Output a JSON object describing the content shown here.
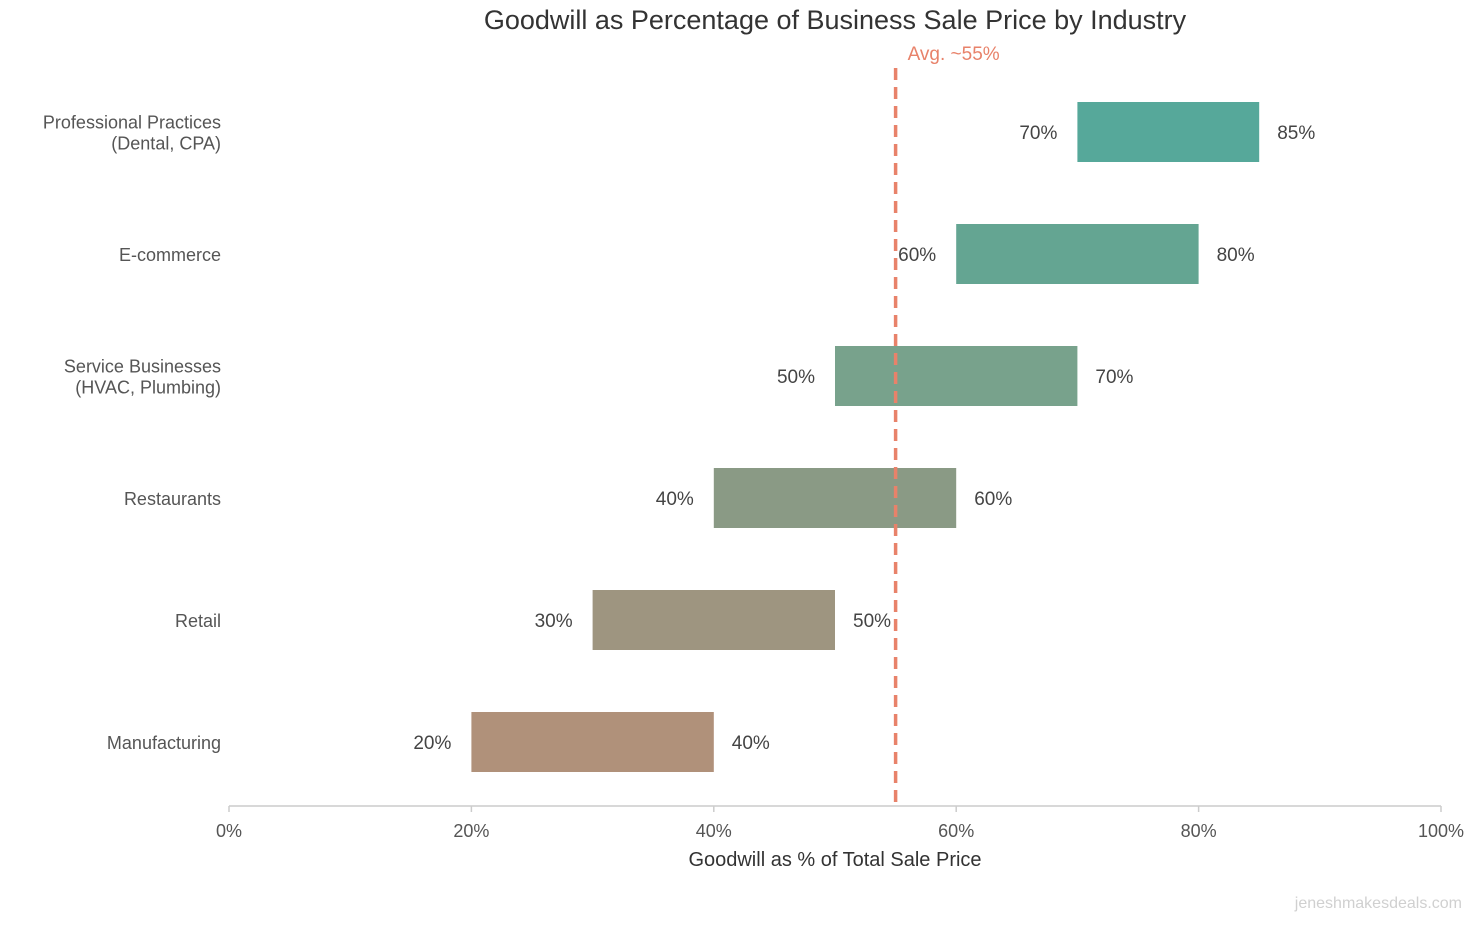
{
  "chart_data": {
    "type": "bar",
    "subtype": "floating-range-horizontal",
    "title": "Goodwill as Percentage of Business Sale Price by Industry",
    "xlabel": "Goodwill as % of Total Sale Price",
    "ylabel": "",
    "xlim": [
      0,
      100
    ],
    "xticks": [
      "0%",
      "20%",
      "40%",
      "60%",
      "80%",
      "100%"
    ],
    "xtick_values": [
      0,
      20,
      40,
      60,
      80,
      100
    ],
    "grid": false,
    "categories": [
      [
        "Professional Practices",
        "(Dental, CPA)"
      ],
      [
        "E-commerce"
      ],
      [
        "Service Businesses",
        "(HVAC, Plumbing)"
      ],
      [
        "Restaurants"
      ],
      [
        "Retail"
      ],
      [
        "Manufacturing"
      ]
    ],
    "low": [
      70,
      60,
      50,
      40,
      30,
      20
    ],
    "high": [
      85,
      80,
      70,
      60,
      50,
      40
    ],
    "low_labels": [
      "70%",
      "60%",
      "50%",
      "40%",
      "30%",
      "20%"
    ],
    "high_labels": [
      "85%",
      "80%",
      "70%",
      "60%",
      "50%",
      "40%"
    ],
    "colors": [
      "#56a89a",
      "#64a592",
      "#78a28c",
      "#8a9a85",
      "#9e9580",
      "#b0917a"
    ],
    "reference_line": {
      "value": 55,
      "label": "Avg. ~55%",
      "color": "#e8826a",
      "style": "dashed"
    }
  },
  "watermark": "jeneshmakesdeals.com"
}
